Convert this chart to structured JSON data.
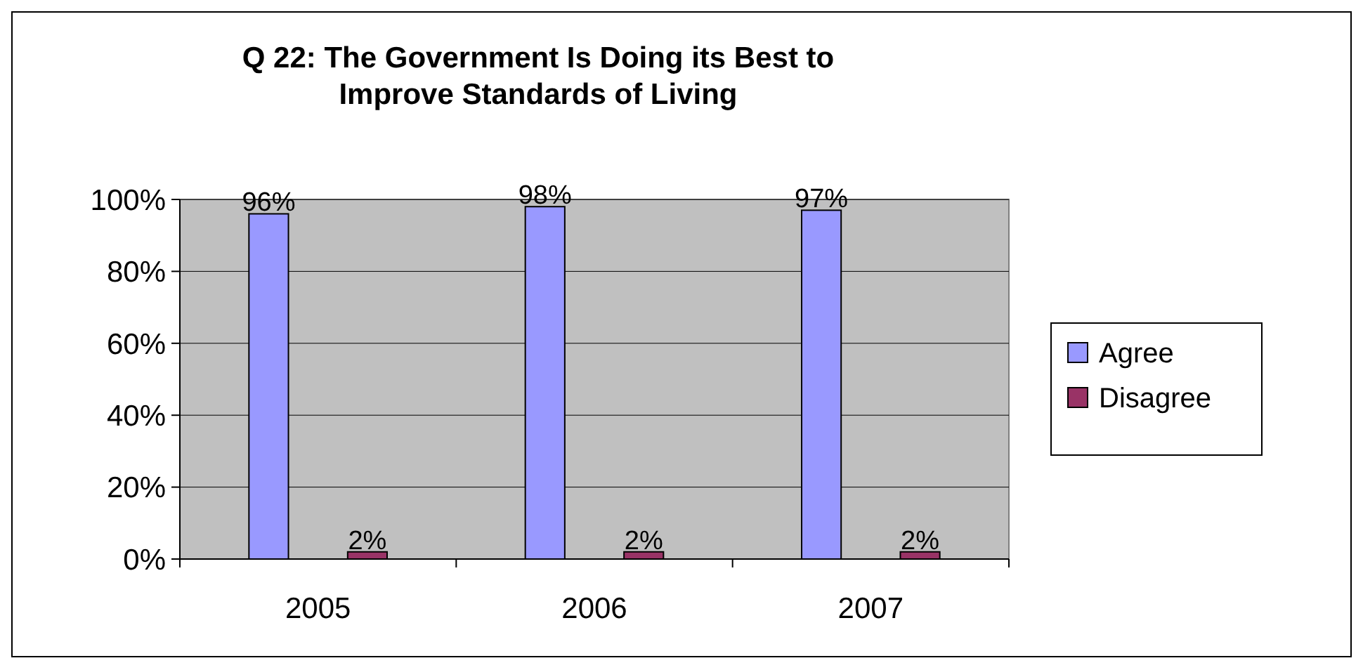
{
  "chart_data": {
    "type": "bar",
    "title": "Q 22: The Government Is Doing its Best to\nImprove Standards of Living",
    "categories": [
      "2005",
      "2006",
      "2007"
    ],
    "series": [
      {
        "name": "Agree",
        "color": "#9999ff",
        "values": [
          96,
          98,
          97
        ],
        "value_labels": [
          "96%",
          "98%",
          "97%"
        ]
      },
      {
        "name": "Disagree",
        "color": "#993366",
        "values": [
          2,
          2,
          2
        ],
        "value_labels": [
          "2%",
          "2%",
          "2%"
        ]
      }
    ],
    "ylim": [
      0,
      100
    ],
    "yticks": [
      {
        "value": 0,
        "label": "0%"
      },
      {
        "value": 20,
        "label": "20%"
      },
      {
        "value": 40,
        "label": "40%"
      },
      {
        "value": 60,
        "label": "60%"
      },
      {
        "value": 80,
        "label": "80%"
      },
      {
        "value": 100,
        "label": "100%"
      }
    ],
    "grid": "y",
    "legend": "right"
  }
}
